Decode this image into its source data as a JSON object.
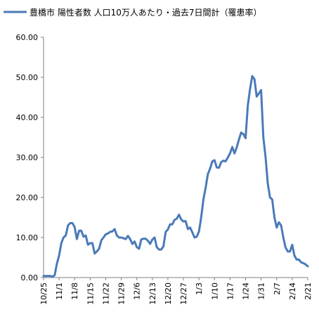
{
  "chart_data": {
    "type": "line",
    "legend_position": "top-left",
    "grid": false,
    "series": [
      {
        "name": "豊橋市 陽性者数 人口10万人あたり・過去7日間計（罹患率）",
        "color": "#4a7ab8",
        "x": [
          0,
          1,
          2,
          3,
          4,
          5,
          6,
          7,
          8,
          9,
          10,
          11,
          12,
          13,
          14,
          15,
          16,
          17,
          18,
          19,
          20,
          21,
          22,
          23,
          24,
          25,
          26,
          27,
          28,
          29,
          30,
          31,
          32,
          33,
          34,
          35,
          36,
          37,
          38,
          39,
          40,
          41,
          42,
          43,
          44,
          45,
          46,
          47,
          48,
          49,
          50,
          51,
          52,
          53,
          54,
          55,
          56,
          57,
          58,
          59,
          60,
          61,
          62,
          63,
          64,
          65,
          66,
          67,
          68,
          69,
          70,
          71,
          72,
          73,
          74,
          75,
          76,
          77,
          78,
          79,
          80,
          81,
          82,
          83,
          84,
          85,
          86,
          87,
          88,
          89,
          90,
          91,
          92,
          93,
          94,
          95,
          96,
          97,
          98,
          99,
          100,
          101,
          102,
          103,
          104,
          105,
          106,
          107,
          108,
          109,
          110,
          111,
          112,
          113,
          114,
          115,
          116,
          117,
          118,
          119
        ],
        "values": [
          0.4,
          0.4,
          0.4,
          0.4,
          0.2,
          0.6,
          3.5,
          5.5,
          8.6,
          10.0,
          10.5,
          13.0,
          13.6,
          13.6,
          12.6,
          9.6,
          11.7,
          11.7,
          10.2,
          10.5,
          8.2,
          8.6,
          8.6,
          6.0,
          6.5,
          7.2,
          9.3,
          10.0,
          10.8,
          11.0,
          11.4,
          11.5,
          12.1,
          10.5,
          10.0,
          10.0,
          9.8,
          9.6,
          10.4,
          9.6,
          8.4,
          9.0,
          7.6,
          7.2,
          9.5,
          9.7,
          9.7,
          9.2,
          8.4,
          9.5,
          10.0,
          7.6,
          7.0,
          7.0,
          7.8,
          11.4,
          12.0,
          13.3,
          13.3,
          14.4,
          14.7,
          15.7,
          14.5,
          14.0,
          14.1,
          12.1,
          12.5,
          11.3,
          10.0,
          10.2,
          11.5,
          15.0,
          19.5,
          22.5,
          25.8,
          27.2,
          29.0,
          29.3,
          27.5,
          27.4,
          28.8,
          29.2,
          29.0,
          30.0,
          31.0,
          32.6,
          31.0,
          32.5,
          34.5,
          36.2,
          35.8,
          34.8,
          43.0,
          47.0,
          50.3,
          49.5,
          45.2,
          46.0,
          46.8,
          35.0,
          30.0,
          23.5,
          20.0,
          19.5,
          15.0,
          12.5,
          13.8,
          13.0,
          10.0,
          7.5,
          6.5,
          6.5,
          8.2,
          5.5,
          4.5,
          4.5,
          3.8,
          3.6,
          3.3,
          2.8
        ]
      }
    ],
    "xticks": [
      {
        "label": "10/25",
        "x": 0
      },
      {
        "label": "11/1",
        "x": 7
      },
      {
        "label": "11/8",
        "x": 14
      },
      {
        "label": "11/15",
        "x": 21
      },
      {
        "label": "11/22",
        "x": 28
      },
      {
        "label": "11/29",
        "x": 35
      },
      {
        "label": "12/6",
        "x": 42
      },
      {
        "label": "12/13",
        "x": 49
      },
      {
        "label": "12/20",
        "x": 56
      },
      {
        "label": "12/27",
        "x": 63
      },
      {
        "label": "1/3",
        "x": 70
      },
      {
        "label": "1/10",
        "x": 77
      },
      {
        "label": "1/17",
        "x": 84
      },
      {
        "label": "1/24",
        "x": 91
      },
      {
        "label": "1/31",
        "x": 98
      },
      {
        "label": "2/7",
        "x": 105
      },
      {
        "label": "2/14",
        "x": 112
      },
      {
        "label": "2/21",
        "x": 119
      }
    ],
    "yticks": [
      {
        "label": "0.00",
        "value": 0
      },
      {
        "label": "10.00",
        "value": 10
      },
      {
        "label": "20.00",
        "value": 20
      },
      {
        "label": "30.00",
        "value": 30
      },
      {
        "label": "40.00",
        "value": 40
      },
      {
        "label": "50.00",
        "value": 50
      },
      {
        "label": "60.00",
        "value": 60
      }
    ],
    "xlim": [
      0,
      119
    ],
    "ylim": [
      0,
      60
    ]
  }
}
